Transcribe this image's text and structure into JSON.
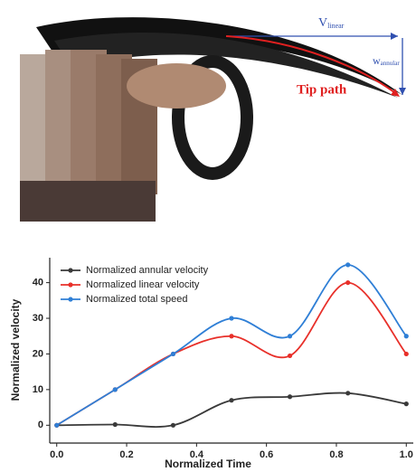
{
  "illustration": {
    "v_symbol": "V",
    "v_subscript": "linear",
    "w_symbol": "w",
    "w_subscript": "annular",
    "tip_label": "Tip path"
  },
  "chart_data": {
    "type": "line",
    "x_label": "Normalized Time",
    "y_label": "Normalized velocity",
    "x": [
      0,
      0.167,
      0.333,
      0.5,
      0.667,
      0.833,
      1.0
    ],
    "series": [
      {
        "name": "Normalized annular velocity",
        "color": "#3a3a3a",
        "values": [
          0,
          0.2,
          0,
          7,
          8,
          9,
          6
        ]
      },
      {
        "name": "Normalized linear velocity",
        "color": "#e8302a",
        "values": [
          0,
          10,
          20,
          25,
          19.5,
          40,
          20
        ]
      },
      {
        "name": "Normalized total speed",
        "color": "#2f7fd6",
        "values": [
          0,
          10,
          20,
          30,
          25,
          45,
          25
        ]
      }
    ],
    "xlim": [
      -0.02,
      1.02
    ],
    "ylim": [
      -5,
      47
    ],
    "xticks": [
      {
        "value": 0,
        "label": "0.0"
      },
      0.2,
      0.4,
      0.6,
      0.8,
      {
        "value": 1,
        "label": "1.0"
      }
    ],
    "yticks": [
      0,
      10,
      20,
      30,
      40
    ],
    "legend": "upper-left",
    "grid": false
  }
}
